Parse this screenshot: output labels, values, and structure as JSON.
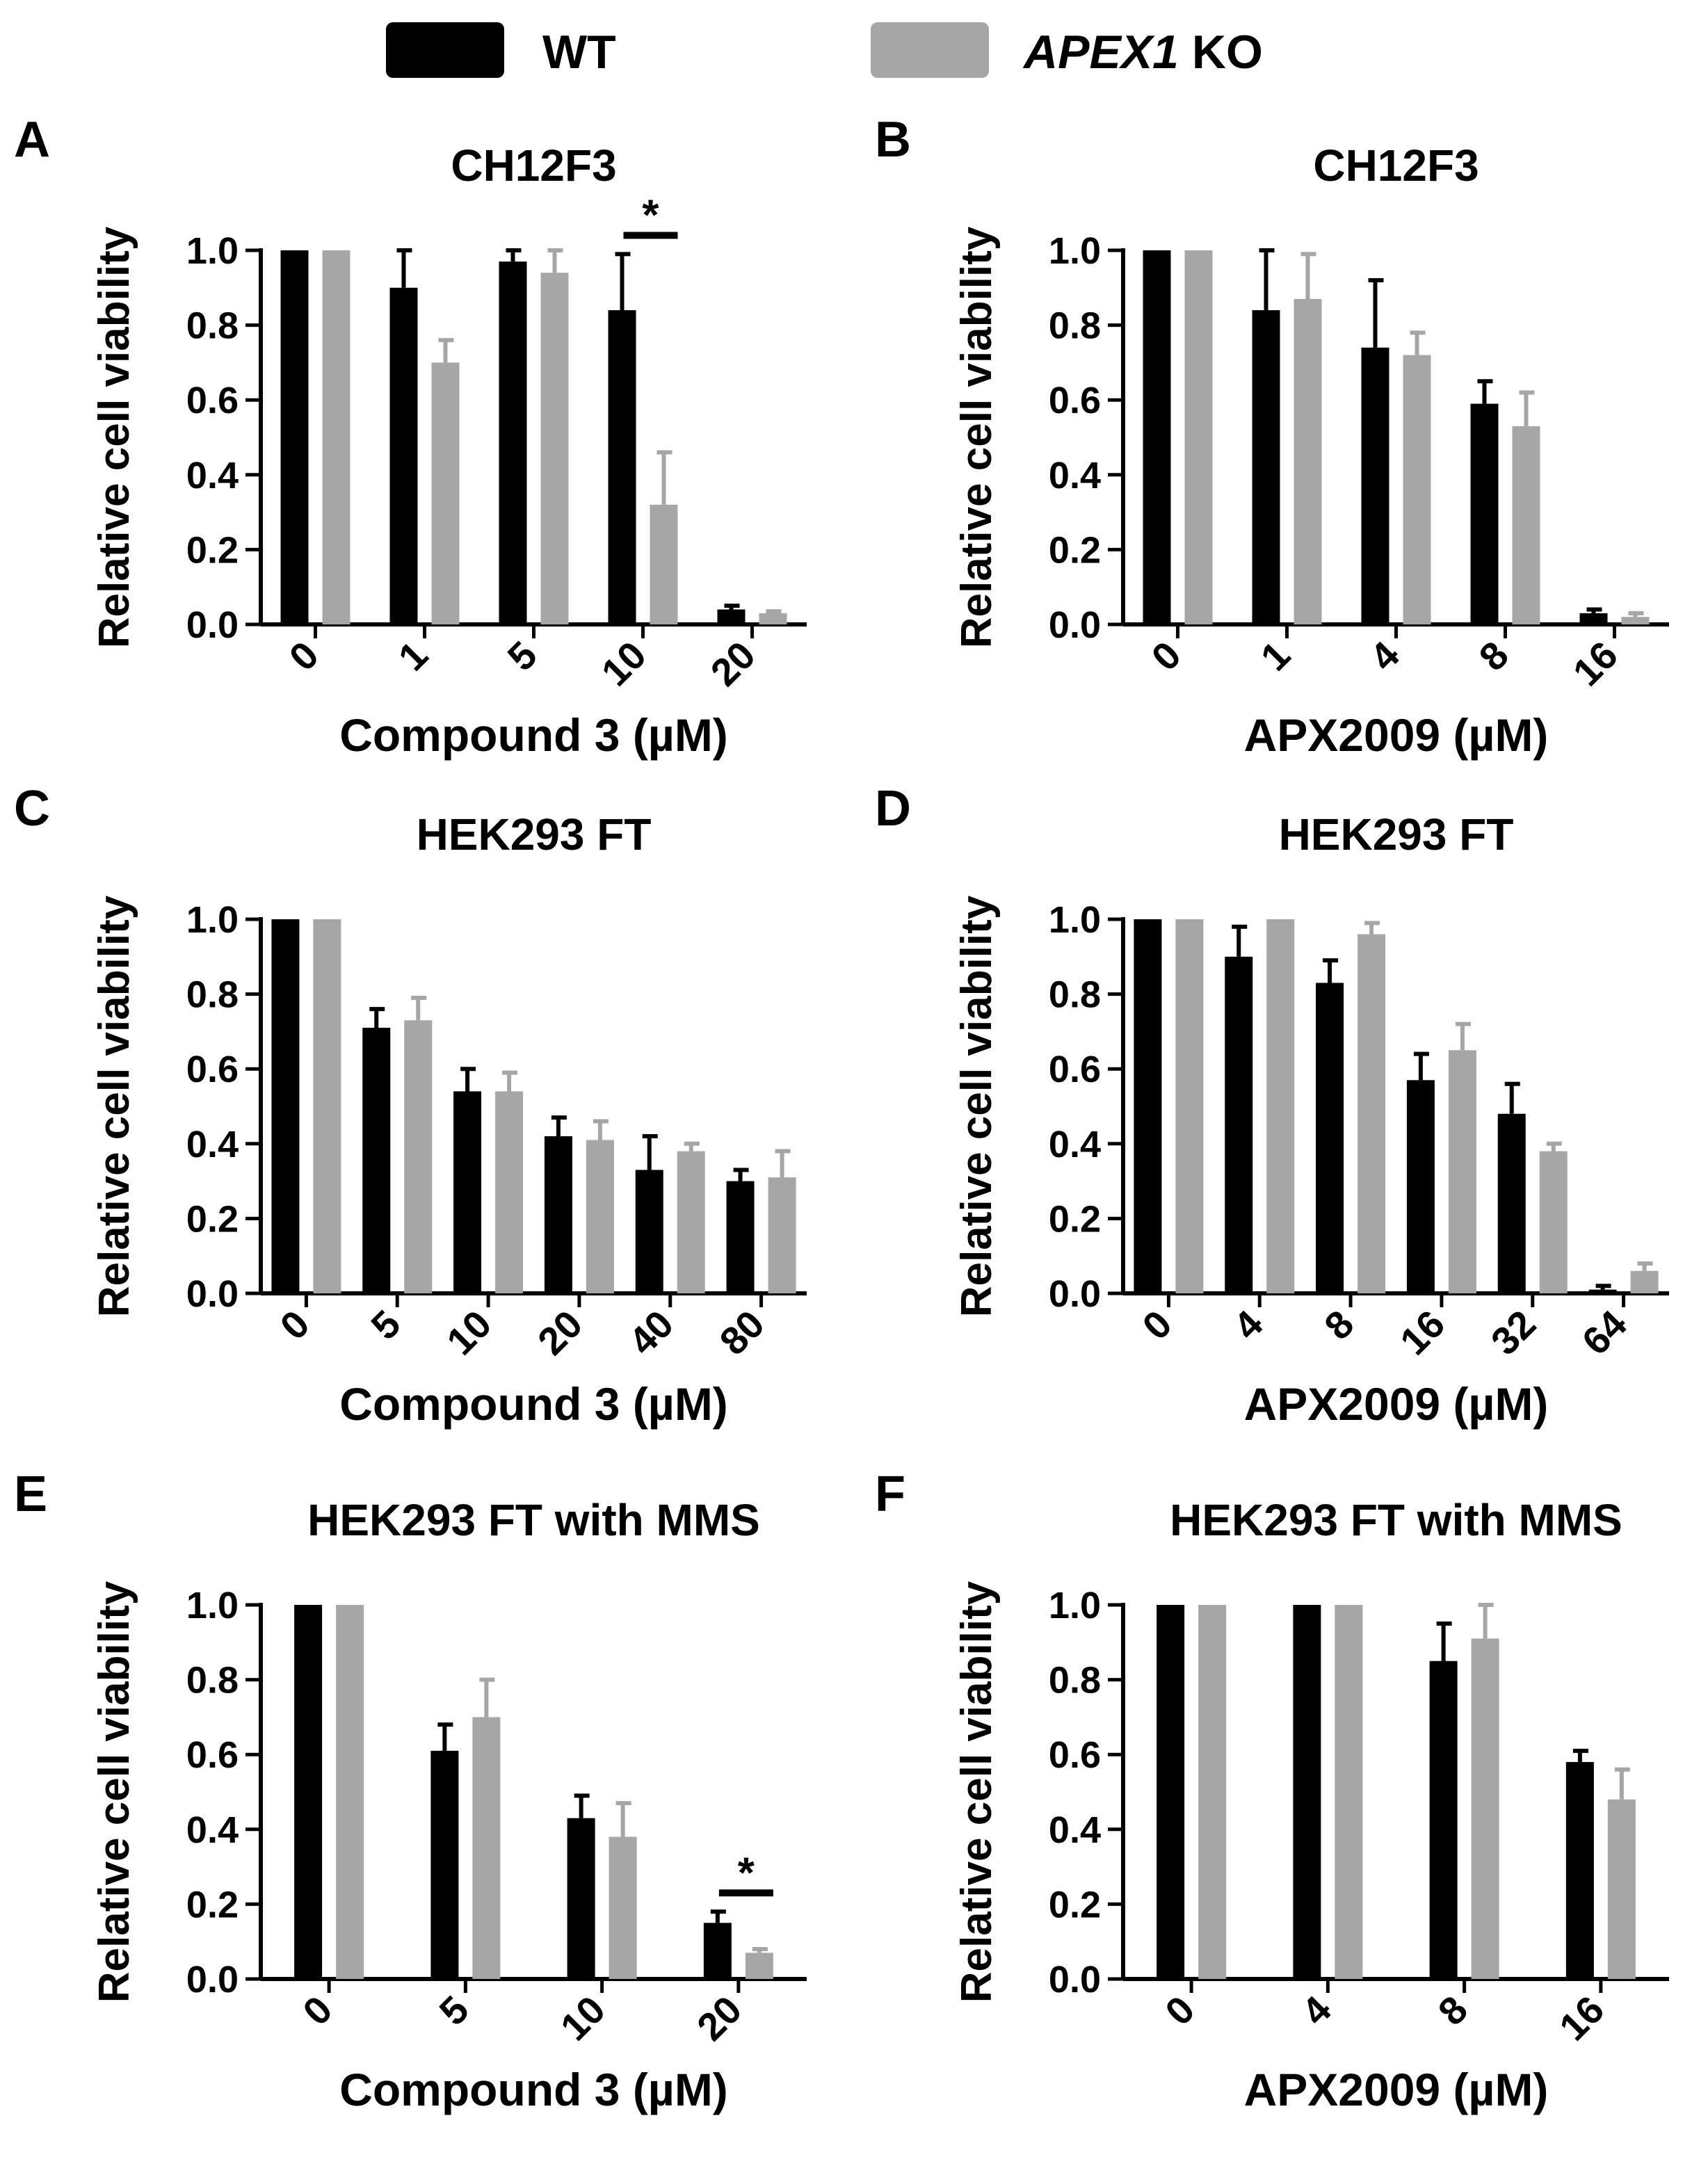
{
  "legend": {
    "entries": [
      {
        "label": "WT",
        "italic": "",
        "suffix": "",
        "color": "#000000"
      },
      {
        "label": "",
        "italic": "APEX1",
        "suffix": " KO",
        "color": "#a6a6a6"
      }
    ]
  },
  "colors": {
    "wt": "#000000",
    "ko": "#a6a6a6",
    "axis": "#000000"
  },
  "chart_data": [
    {
      "panel": "A",
      "type": "bar",
      "title": "CH12F3",
      "xlabel": "Compound 3 (µM)",
      "ylabel": "Relative cell viability",
      "ylim": [
        0,
        1.0
      ],
      "yticks": [
        "0.0",
        "0.2",
        "0.4",
        "0.6",
        "0.8",
        "1.0"
      ],
      "categories": [
        "0",
        "1",
        "5",
        "10",
        "20"
      ],
      "series": [
        {
          "name": "WT",
          "values": [
            1.0,
            0.9,
            0.97,
            0.84,
            0.04
          ],
          "errors": [
            0,
            0.1,
            0.03,
            0.15,
            0.01
          ]
        },
        {
          "name": "APEX1 KO",
          "values": [
            1.0,
            0.7,
            0.94,
            0.32,
            0.03
          ],
          "errors": [
            0,
            0.06,
            0.06,
            0.14,
            0.005
          ]
        }
      ],
      "significance": [
        {
          "category": "10",
          "label": "*"
        }
      ]
    },
    {
      "panel": "B",
      "type": "bar",
      "title": "CH12F3",
      "xlabel": "APX2009 (µM)",
      "ylabel": "Relative cell viability",
      "ylim": [
        0,
        1.0
      ],
      "yticks": [
        "0.0",
        "0.2",
        "0.4",
        "0.6",
        "0.8",
        "1.0"
      ],
      "categories": [
        "0",
        "1",
        "4",
        "8",
        "16"
      ],
      "series": [
        {
          "name": "WT",
          "values": [
            1.0,
            0.84,
            0.74,
            0.59,
            0.03
          ],
          "errors": [
            0,
            0.16,
            0.18,
            0.06,
            0.01
          ]
        },
        {
          "name": "APEX1 KO",
          "values": [
            1.0,
            0.87,
            0.72,
            0.53,
            0.02
          ],
          "errors": [
            0,
            0.12,
            0.06,
            0.09,
            0.01
          ]
        }
      ],
      "significance": []
    },
    {
      "panel": "C",
      "type": "bar",
      "title": "HEK293 FT",
      "xlabel": "Compound 3 (µM)",
      "ylabel": "Relative cell viability",
      "ylim": [
        0,
        1.0
      ],
      "yticks": [
        "0.0",
        "0.2",
        "0.4",
        "0.6",
        "0.8",
        "1.0"
      ],
      "categories": [
        "0",
        "5",
        "10",
        "20",
        "40",
        "80"
      ],
      "series": [
        {
          "name": "WT",
          "values": [
            1.0,
            0.71,
            0.54,
            0.42,
            0.33,
            0.3
          ],
          "errors": [
            0,
            0.05,
            0.06,
            0.05,
            0.09,
            0.03
          ]
        },
        {
          "name": "APEX1 KO",
          "values": [
            1.0,
            0.73,
            0.54,
            0.41,
            0.38,
            0.31
          ],
          "errors": [
            0,
            0.06,
            0.05,
            0.05,
            0.02,
            0.07
          ]
        }
      ],
      "significance": []
    },
    {
      "panel": "D",
      "type": "bar",
      "title": "HEK293 FT",
      "xlabel": "APX2009 (µM)",
      "ylabel": "Relative cell viability",
      "ylim": [
        0,
        1.0
      ],
      "yticks": [
        "0.0",
        "0.2",
        "0.4",
        "0.6",
        "0.8",
        "1.0"
      ],
      "categories": [
        "0",
        "4",
        "8",
        "16",
        "32",
        "64"
      ],
      "series": [
        {
          "name": "WT",
          "values": [
            1.0,
            0.9,
            0.83,
            0.57,
            0.48,
            0.01
          ],
          "errors": [
            0,
            0.08,
            0.06,
            0.07,
            0.08,
            0.01
          ]
        },
        {
          "name": "APEX1 KO",
          "values": [
            1.0,
            1.0,
            0.96,
            0.65,
            0.38,
            0.06
          ],
          "errors": [
            0,
            0,
            0.03,
            0.07,
            0.02,
            0.02
          ]
        }
      ],
      "significance": []
    },
    {
      "panel": "E",
      "type": "bar",
      "title": "HEK293 FT with MMS",
      "xlabel": "Compound 3 (µM)",
      "ylabel": "Relative cell viability",
      "ylim": [
        0,
        1.0
      ],
      "yticks": [
        "0.0",
        "0.2",
        "0.4",
        "0.6",
        "0.8",
        "1.0"
      ],
      "categories": [
        "0",
        "5",
        "10",
        "20"
      ],
      "series": [
        {
          "name": "WT",
          "values": [
            1.0,
            0.61,
            0.43,
            0.15
          ],
          "errors": [
            0,
            0.07,
            0.06,
            0.03
          ]
        },
        {
          "name": "APEX1 KO",
          "values": [
            1.0,
            0.7,
            0.38,
            0.07
          ],
          "errors": [
            0,
            0.1,
            0.09,
            0.01
          ]
        }
      ],
      "significance": [
        {
          "category": "20",
          "label": "*"
        }
      ]
    },
    {
      "panel": "F",
      "type": "bar",
      "title": "HEK293 FT with MMS",
      "xlabel": "APX2009 (µM)",
      "ylabel": "Relative cell viability",
      "ylim": [
        0,
        1.0
      ],
      "yticks": [
        "0.0",
        "0.2",
        "0.4",
        "0.6",
        "0.8",
        "1.0"
      ],
      "categories": [
        "0",
        "4",
        "8",
        "16"
      ],
      "series": [
        {
          "name": "WT",
          "values": [
            1.0,
            1.0,
            0.85,
            0.58
          ],
          "errors": [
            0,
            0,
            0.1,
            0.03
          ]
        },
        {
          "name": "APEX1 KO",
          "values": [
            1.0,
            1.0,
            0.91,
            0.48
          ],
          "errors": [
            0,
            0,
            0.09,
            0.08
          ]
        }
      ],
      "significance": []
    }
  ]
}
